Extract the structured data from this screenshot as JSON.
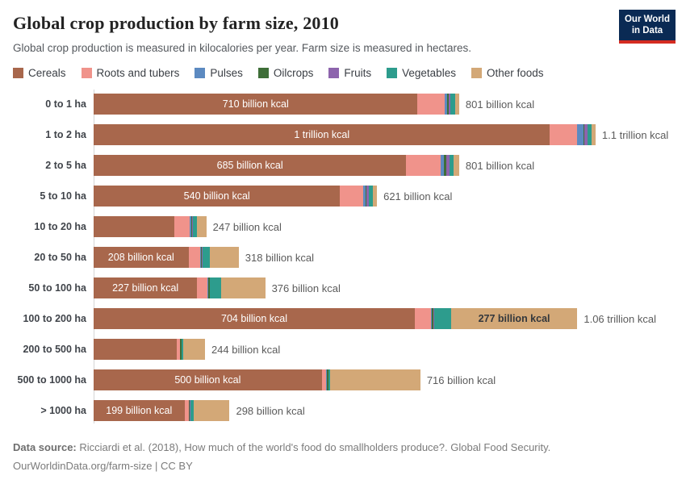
{
  "header": {
    "title": "Global crop production by farm size, 2010",
    "subtitle": "Global crop production is measured in kilocalories per year. Farm size is measured in hectares.",
    "logo": {
      "line1": "Our World",
      "line2": "in Data",
      "bg_color": "#0a2a54",
      "accent_color": "#d42b21"
    }
  },
  "legend": {
    "items": [
      {
        "label": "Cereals",
        "color": "#a8674c"
      },
      {
        "label": "Roots and tubers",
        "color": "#f0938b"
      },
      {
        "label": "Pulses",
        "color": "#5c8ac1"
      },
      {
        "label": "Oilcrops",
        "color": "#3e6e38"
      },
      {
        "label": "Fruits",
        "color": "#8d64ad"
      },
      {
        "label": "Vegetables",
        "color": "#2d9c8d"
      },
      {
        "label": "Other foods",
        "color": "#d3a877"
      }
    ]
  },
  "chart_data": {
    "type": "bar",
    "stacked": true,
    "orientation": "horizontal",
    "unit": "billion kcal per year",
    "xlim_billion": [
      0,
      1100
    ],
    "series_names": [
      "Cereals",
      "Roots and tubers",
      "Pulses",
      "Oilcrops",
      "Fruits",
      "Vegetables",
      "Other foods"
    ],
    "categories": [
      "0 to 1 ha",
      "1 to 2 ha",
      "2 to 5 ha",
      "5 to 10 ha",
      "10 to 20 ha",
      "20 to 50 ha",
      "50 to 100 ha",
      "100 to 200 ha",
      "200 to 500 ha",
      "500 to 1000 ha",
      "> 1000 ha"
    ],
    "rows": [
      {
        "category": "0 to 1 ha",
        "values": [
          710,
          60,
          5,
          3,
          4,
          10,
          9
        ],
        "total_billion": 801,
        "cereals_label": "710 billion kcal",
        "other_label": null,
        "total_label": "801 billion kcal"
      },
      {
        "category": "1 to 2 ha",
        "values": [
          1000,
          60,
          14,
          2,
          6,
          9,
          9
        ],
        "total_billion": 1100,
        "cereals_label": "1 trillion kcal",
        "other_label": null,
        "total_label": "1.1 trillion kcal"
      },
      {
        "category": "2 to 5 ha",
        "values": [
          685,
          75,
          8,
          4,
          8,
          9,
          12
        ],
        "total_billion": 801,
        "cereals_label": "685 billion kcal",
        "other_label": null,
        "total_label": "801 billion kcal"
      },
      {
        "category": "5 to 10 ha",
        "values": [
          540,
          50,
          6,
          2,
          5,
          9,
          9
        ],
        "total_billion": 621,
        "cereals_label": "540 billion kcal",
        "other_label": null,
        "total_label": "621 billion kcal"
      },
      {
        "category": "10 to 20 ha",
        "values": [
          177,
          34,
          3,
          2,
          2,
          8,
          21
        ],
        "total_billion": 247,
        "cereals_label": null,
        "other_label": null,
        "total_label": "247 billion kcal"
      },
      {
        "category": "20 to 50 ha",
        "values": [
          208,
          25,
          2,
          2,
          2,
          15,
          64
        ],
        "total_billion": 318,
        "cereals_label": "208 billion kcal",
        "other_label": null,
        "total_label": "318 billion kcal"
      },
      {
        "category": "50 to 100 ha",
        "values": [
          227,
          23,
          1,
          3,
          1,
          24,
          97
        ],
        "total_billion": 376,
        "cereals_label": "227 billion kcal",
        "other_label": null,
        "total_label": "376 billion kcal"
      },
      {
        "category": "100 to 200 ha",
        "values": [
          704,
          36,
          1,
          4,
          2,
          36,
          277
        ],
        "total_billion": 1060,
        "cereals_label": "704 billion kcal",
        "other_label": "277 billion kcal",
        "total_label": "1.06 trillion kcal"
      },
      {
        "category": "200 to 500 ha",
        "values": [
          182,
          7,
          1,
          2,
          1,
          4,
          47
        ],
        "total_billion": 244,
        "cereals_label": null,
        "other_label": null,
        "total_label": "244 billion kcal"
      },
      {
        "category": "500 to 1000 ha",
        "values": [
          500,
          10,
          1,
          3,
          1,
          3,
          198
        ],
        "total_billion": 716,
        "cereals_label": "500 billion kcal",
        "other_label": null,
        "total_label": "716 billion kcal"
      },
      {
        "category": "> 1000 ha",
        "values": [
          199,
          9,
          1,
          2,
          1,
          8,
          78
        ],
        "total_billion": 298,
        "cereals_label": "199 billion kcal",
        "other_label": null,
        "total_label": "298 billion kcal"
      }
    ]
  },
  "footer": {
    "source_label": "Data source:",
    "source_text": " Ricciardi et al. (2018), How much of the world's food do smallholders produce?. Global Food Security.",
    "license_line": "OurWorldinData.org/farm-size | CC BY"
  }
}
